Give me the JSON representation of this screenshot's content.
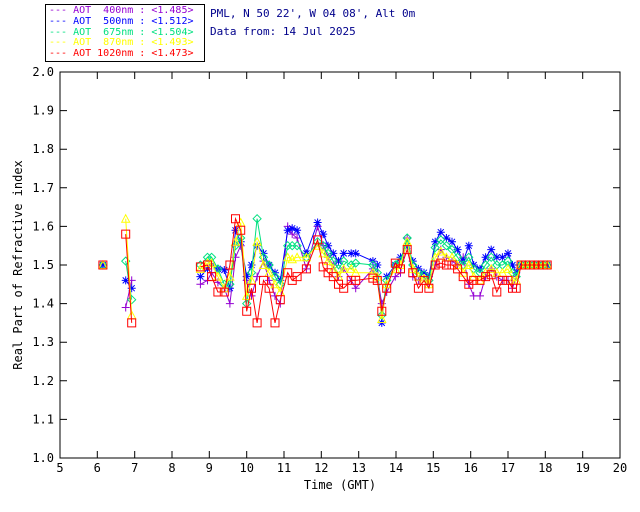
{
  "header": {
    "site_line": "PML, N 50 22', W 04 08', Alt 0m",
    "date_line": "Data from: 14 Jul 2025",
    "text_color": "#00008B"
  },
  "legend": {
    "entries": [
      {
        "dash": "---",
        "label": "AOT  400nm",
        "value": "<1.485>",
        "color": "#9400D3"
      },
      {
        "dash": "---",
        "label": "AOT  500nm",
        "value": "<1.512>",
        "color": "#0000FF"
      },
      {
        "dash": "---",
        "label": "AOT  675nm",
        "value": "<1.504>",
        "color": "#00E080"
      },
      {
        "dash": "---",
        "label": "AOT  870nm",
        "value": "<1.493>",
        "color": "#FFFF00"
      },
      {
        "dash": "---",
        "label": "AOT 1020nm",
        "value": "<1.473>",
        "color": "#FF0000"
      }
    ]
  },
  "chart_data": {
    "type": "line",
    "title": "",
    "xlabel": "Time (GMT)",
    "ylabel": "Real Part of Refractive index",
    "xlim": [
      5,
      20
    ],
    "ylim": [
      1.0,
      2.0
    ],
    "xticks": [
      "5",
      "6",
      "7",
      "8",
      "9",
      "10",
      "11",
      "12",
      "13",
      "14",
      "15",
      "16",
      "17",
      "18",
      "19",
      "20"
    ],
    "yticks": [
      "1.0",
      "1.1",
      "1.2",
      "1.3",
      "1.4",
      "1.5",
      "1.6",
      "1.7",
      "1.8",
      "1.9",
      "2.0"
    ],
    "grid": false,
    "legend_position": "top-left-outside",
    "gap_threshold_hours": 0.6,
    "axis_color": "#000000",
    "x": [
      6.15,
      6.76,
      6.92,
      8.76,
      8.95,
      9.06,
      9.23,
      9.4,
      9.55,
      9.7,
      9.84,
      10.0,
      10.13,
      10.28,
      10.45,
      10.6,
      10.76,
      10.9,
      11.1,
      11.22,
      11.35,
      11.6,
      11.9,
      12.05,
      12.18,
      12.32,
      12.46,
      12.6,
      12.8,
      12.92,
      13.38,
      13.5,
      13.62,
      13.75,
      13.98,
      14.12,
      14.3,
      14.45,
      14.6,
      14.75,
      14.88,
      15.05,
      15.2,
      15.35,
      15.5,
      15.65,
      15.8,
      15.95,
      16.08,
      16.25,
      16.4,
      16.55,
      16.7,
      16.85,
      17.0,
      17.12,
      17.22,
      17.35,
      17.47,
      17.58,
      17.7,
      17.82,
      17.94,
      18.05
    ],
    "series": [
      {
        "name": "AOT 400nm",
        "wavelength_nm": 400,
        "mean_label": "<1.485>",
        "color": "#9400D3",
        "marker": "plus",
        "values": [
          1.5,
          1.39,
          1.46,
          1.45,
          1.46,
          1.48,
          1.455,
          1.44,
          1.4,
          1.52,
          1.55,
          1.46,
          1.42,
          1.47,
          1.51,
          1.46,
          1.42,
          1.4,
          1.6,
          1.58,
          1.57,
          1.49,
          1.6,
          1.55,
          1.52,
          1.5,
          1.47,
          1.49,
          1.46,
          1.44,
          1.49,
          1.47,
          1.4,
          1.43,
          1.47,
          1.48,
          1.57,
          1.47,
          1.46,
          1.47,
          1.45,
          1.5,
          1.54,
          1.52,
          1.51,
          1.5,
          1.52,
          1.45,
          1.42,
          1.42,
          1.47,
          1.49,
          1.47,
          1.46,
          1.46,
          1.44,
          1.47,
          1.5,
          1.5,
          1.5,
          1.5,
          1.5,
          1.5,
          1.5
        ]
      },
      {
        "name": "AOT 500nm",
        "wavelength_nm": 500,
        "mean_label": "<1.512>",
        "color": "#0000FF",
        "marker": "asterisk",
        "values": [
          1.5,
          1.46,
          1.44,
          1.47,
          1.49,
          1.5,
          1.49,
          1.487,
          1.44,
          1.59,
          1.56,
          1.47,
          1.5,
          1.55,
          1.53,
          1.5,
          1.48,
          1.46,
          1.59,
          1.595,
          1.59,
          1.53,
          1.61,
          1.58,
          1.55,
          1.53,
          1.51,
          1.53,
          1.53,
          1.53,
          1.51,
          1.5,
          1.35,
          1.47,
          1.5,
          1.52,
          1.55,
          1.51,
          1.49,
          1.48,
          1.47,
          1.56,
          1.585,
          1.57,
          1.56,
          1.54,
          1.51,
          1.55,
          1.5,
          1.49,
          1.52,
          1.54,
          1.52,
          1.52,
          1.53,
          1.5,
          1.48,
          1.5,
          1.5,
          1.5,
          1.5,
          1.5,
          1.5,
          1.5
        ]
      },
      {
        "name": "AOT 675nm",
        "wavelength_nm": 675,
        "mean_label": "<1.504>",
        "color": "#00E080",
        "marker": "diamond",
        "values": [
          1.5,
          1.51,
          1.41,
          1.5,
          1.52,
          1.52,
          1.49,
          1.45,
          1.45,
          1.55,
          1.57,
          1.4,
          1.48,
          1.62,
          1.52,
          1.5,
          1.47,
          1.45,
          1.55,
          1.55,
          1.55,
          1.52,
          1.56,
          1.55,
          1.53,
          1.51,
          1.49,
          1.51,
          1.5,
          1.505,
          1.5,
          1.48,
          1.37,
          1.46,
          1.5,
          1.51,
          1.57,
          1.5,
          1.48,
          1.475,
          1.46,
          1.545,
          1.565,
          1.55,
          1.54,
          1.52,
          1.5,
          1.52,
          1.49,
          1.48,
          1.5,
          1.52,
          1.5,
          1.5,
          1.51,
          1.48,
          1.47,
          1.5,
          1.5,
          1.5,
          1.5,
          1.5,
          1.5,
          1.5
        ]
      },
      {
        "name": "AOT 870nm",
        "wavelength_nm": 870,
        "mean_label": "<1.493>",
        "color": "#FFFF00",
        "marker": "triangle",
        "values": [
          1.5,
          1.62,
          1.37,
          1.49,
          1.505,
          1.505,
          1.47,
          1.44,
          1.47,
          1.56,
          1.61,
          1.42,
          1.46,
          1.56,
          1.5,
          1.48,
          1.45,
          1.43,
          1.52,
          1.515,
          1.52,
          1.52,
          1.55,
          1.53,
          1.51,
          1.49,
          1.47,
          1.49,
          1.49,
          1.48,
          1.48,
          1.47,
          1.36,
          1.45,
          1.49,
          1.5,
          1.56,
          1.49,
          1.47,
          1.465,
          1.45,
          1.52,
          1.535,
          1.52,
          1.52,
          1.5,
          1.48,
          1.5,
          1.47,
          1.46,
          1.48,
          1.49,
          1.48,
          1.48,
          1.49,
          1.46,
          1.46,
          1.5,
          1.5,
          1.5,
          1.5,
          1.5,
          1.5,
          1.5
        ]
      },
      {
        "name": "AOT 1020nm",
        "wavelength_nm": 1020,
        "mean_label": "<1.473>",
        "color": "#FF0000",
        "marker": "square",
        "values": [
          1.5,
          1.58,
          1.35,
          1.495,
          1.5,
          1.47,
          1.43,
          1.43,
          1.5,
          1.62,
          1.59,
          1.38,
          1.44,
          1.35,
          1.46,
          1.44,
          1.35,
          1.41,
          1.48,
          1.46,
          1.47,
          1.49,
          1.565,
          1.495,
          1.48,
          1.47,
          1.45,
          1.44,
          1.46,
          1.46,
          1.466,
          1.46,
          1.38,
          1.44,
          1.505,
          1.49,
          1.54,
          1.48,
          1.44,
          1.46,
          1.44,
          1.5,
          1.505,
          1.5,
          1.5,
          1.49,
          1.47,
          1.45,
          1.46,
          1.46,
          1.47,
          1.475,
          1.43,
          1.46,
          1.46,
          1.44,
          1.44,
          1.5,
          1.5,
          1.5,
          1.5,
          1.5,
          1.5,
          1.5
        ]
      }
    ]
  }
}
